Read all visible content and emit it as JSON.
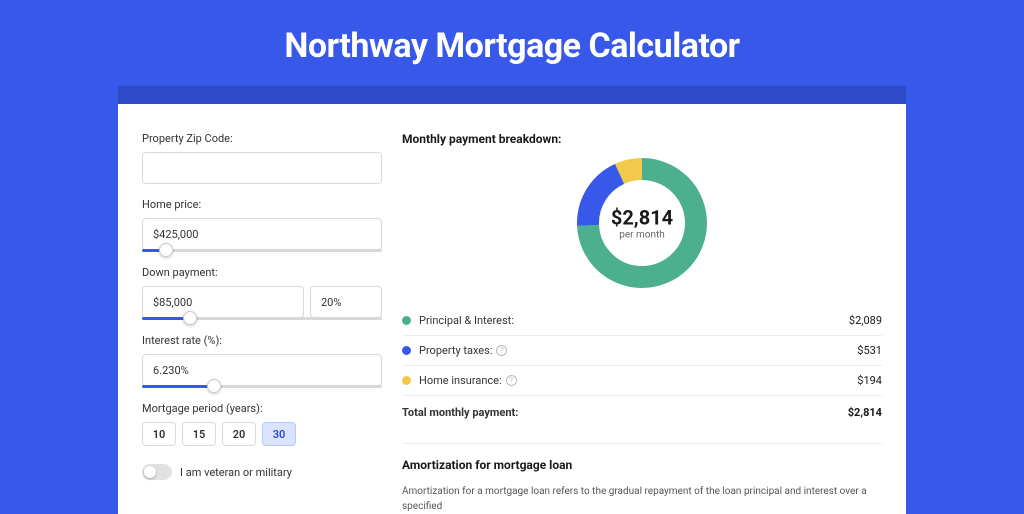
{
  "page": {
    "title": "Northway Mortgage Calculator",
    "background_color": "#3858e9",
    "header_bar_color": "#2d4bc7",
    "card_background": "#ffffff"
  },
  "form": {
    "zip": {
      "label": "Property Zip Code:",
      "value": ""
    },
    "home_price": {
      "label": "Home price:",
      "value": "$425,000",
      "slider_pct": 10
    },
    "down_payment": {
      "label": "Down payment:",
      "amount": "$85,000",
      "percent": "20%",
      "slider_pct": 20
    },
    "interest_rate": {
      "label": "Interest rate (%):",
      "value": "6.230%",
      "slider_pct": 30
    },
    "period": {
      "label": "Mortgage period (years):",
      "options": [
        "10",
        "15",
        "20",
        "30"
      ],
      "active_index": 3
    },
    "veteran": {
      "label": "I am veteran or military",
      "checked": false
    }
  },
  "breakdown": {
    "title": "Monthly payment breakdown:",
    "center_amount": "$2,814",
    "center_sub": "per month",
    "rows": [
      {
        "label": "Principal & Interest:",
        "value": "$2,089",
        "color": "#4caf8e",
        "info": false
      },
      {
        "label": "Property taxes:",
        "value": "$531",
        "color": "#3858e9",
        "info": true
      },
      {
        "label": "Home insurance:",
        "value": "$194",
        "color": "#f2c94c",
        "info": true
      }
    ],
    "total": {
      "label": "Total monthly payment:",
      "value": "$2,814"
    },
    "donut": {
      "size": 130,
      "thickness": 22,
      "slices": [
        {
          "color": "#4caf8e",
          "pct": 74.2
        },
        {
          "color": "#3858e9",
          "pct": 18.9
        },
        {
          "color": "#f2c94c",
          "pct": 6.9
        }
      ]
    }
  },
  "amortization": {
    "title": "Amortization for mortgage loan",
    "body": "Amortization for a mortgage loan refers to the gradual repayment of the loan principal and interest over a specified"
  }
}
